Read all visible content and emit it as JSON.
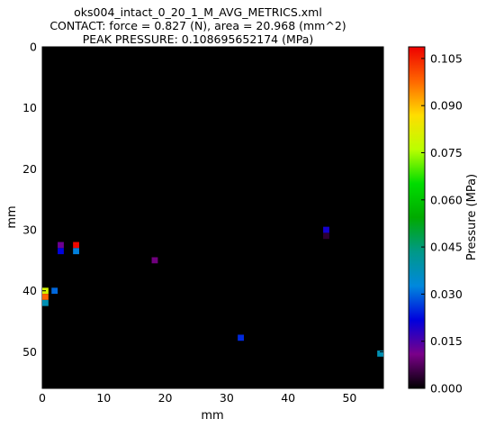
{
  "chart_data": {
    "type": "heatmap",
    "title_lines": [
      "oks004_intact_0_20_1_M_AVG_METRICS.xml",
      "CONTACT: force = 0.827 (N), area = 20.968 (mm^2)",
      "PEAK PRESSURE: 0.108695652174 (MPa)"
    ],
    "xlabel": "mm",
    "ylabel": "mm",
    "colorbar_label": "Pressure (MPa)",
    "xlim": [
      0,
      55.5
    ],
    "ylim": [
      0,
      56
    ],
    "y_inverted": true,
    "x_ticks": [
      "0",
      "10",
      "20",
      "30",
      "40",
      "50"
    ],
    "y_ticks": [
      "0",
      "10",
      "20",
      "30",
      "40",
      "50"
    ],
    "colorbar_range": [
      0,
      0.1087
    ],
    "colorbar_ticks": [
      "0.000",
      "0.015",
      "0.030",
      "0.045",
      "0.060",
      "0.075",
      "0.090",
      "0.105"
    ],
    "colormap": "nipy_spectral",
    "background_value": 0.0,
    "cell_size_mm": 1,
    "cells": [
      {
        "x": 3,
        "y": 32.5,
        "value": 0.012
      },
      {
        "x": 3,
        "y": 33.5,
        "value": 0.022
      },
      {
        "x": 5.5,
        "y": 32.5,
        "value": 0.108
      },
      {
        "x": 5.5,
        "y": 33.5,
        "value": 0.032
      },
      {
        "x": 18.3,
        "y": 35,
        "value": 0.01
      },
      {
        "x": 46.2,
        "y": 30,
        "value": 0.02
      },
      {
        "x": 46.2,
        "y": 31,
        "value": 0.004
      },
      {
        "x": 0.5,
        "y": 40,
        "value": 0.08
      },
      {
        "x": 0.5,
        "y": 41,
        "value": 0.098
      },
      {
        "x": 0.5,
        "y": 42,
        "value": 0.038
      },
      {
        "x": 2,
        "y": 40,
        "value": 0.03
      },
      {
        "x": 32.3,
        "y": 47.7,
        "value": 0.025
      },
      {
        "x": 55,
        "y": 50.3,
        "value": 0.038
      }
    ]
  }
}
